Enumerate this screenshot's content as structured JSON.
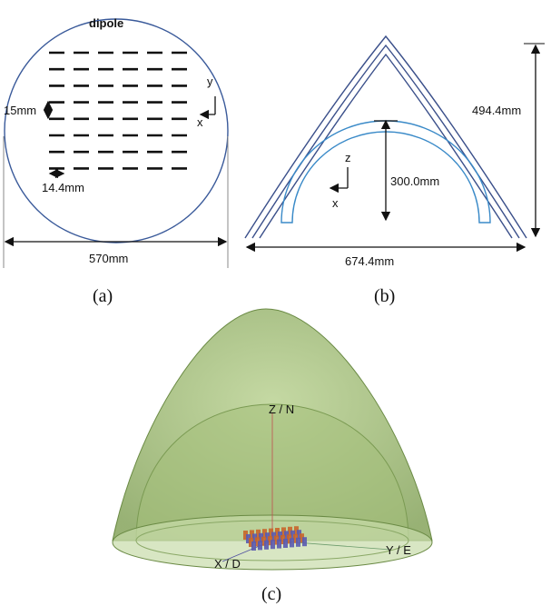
{
  "panel_a": {
    "title": "dipole",
    "element_spacing": "15mm",
    "element_width": "14.4mm",
    "diameter": "570mm",
    "axis_y": "y",
    "axis_x": "x",
    "caption": "(a)"
  },
  "panel_b": {
    "outer_height": "494.4mm",
    "inner_height": "300.0mm",
    "base_width": "674.4mm",
    "axis_z": "z",
    "axis_x": "x",
    "caption": "(b)"
  },
  "panel_c": {
    "axis_z": "Z / N",
    "axis_y": "Y / E",
    "axis_x": "X / D",
    "caption": "(c)"
  }
}
